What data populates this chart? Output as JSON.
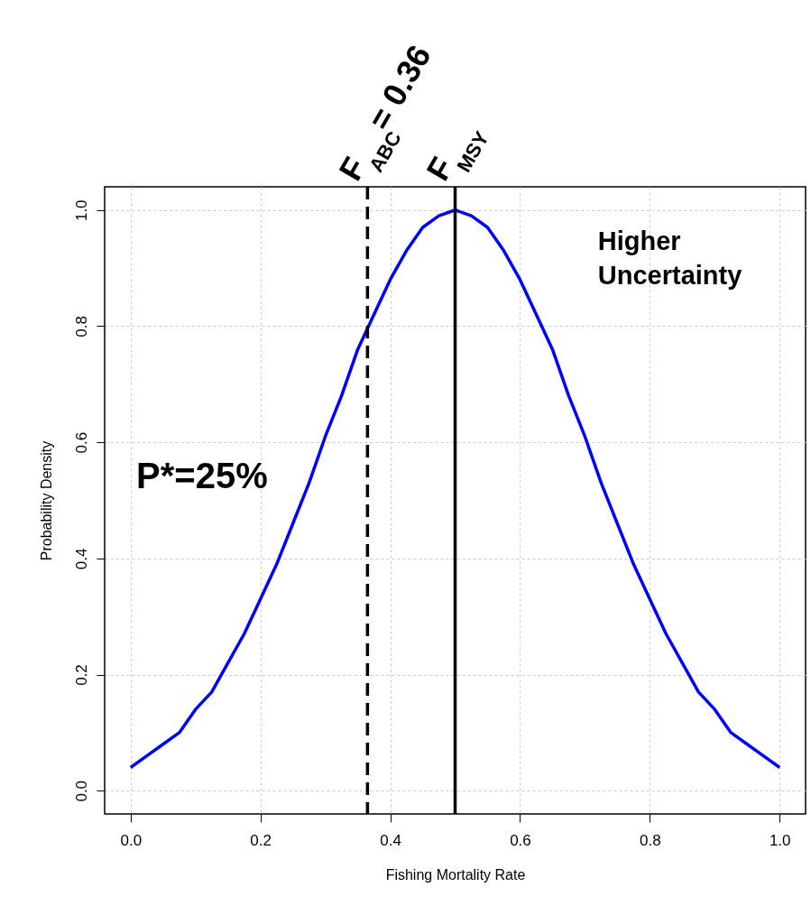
{
  "chart_data": {
    "type": "line",
    "xlabel": "Fishing Mortality Rate",
    "ylabel": "Probability Density",
    "x": [
      0,
      0.025,
      0.05,
      0.075,
      0.1,
      0.125,
      0.15,
      0.175,
      0.2,
      0.225,
      0.25,
      0.275,
      0.3,
      0.325,
      0.35,
      0.375,
      0.4,
      0.425,
      0.45,
      0.475,
      0.5,
      0.525,
      0.55,
      0.575,
      0.6,
      0.625,
      0.65,
      0.675,
      0.7,
      0.725,
      0.75,
      0.775,
      0.8,
      0.825,
      0.85,
      0.875,
      0.9,
      0.925,
      0.95,
      0.975,
      1.0
    ],
    "series": [
      {
        "color": "#0000ff",
        "values": [
          0.04,
          0.06,
          0.08,
          0.1,
          0.14,
          0.17,
          0.22,
          0.27,
          0.33,
          0.39,
          0.46,
          0.53,
          0.61,
          0.68,
          0.76,
          0.82,
          0.88,
          0.93,
          0.97,
          0.99,
          1.0,
          0.99,
          0.97,
          0.93,
          0.88,
          0.82,
          0.76,
          0.68,
          0.61,
          0.53,
          0.46,
          0.39,
          0.33,
          0.27,
          0.22,
          0.17,
          0.14,
          0.1,
          0.08,
          0.06,
          0.04
        ]
      }
    ],
    "xlim": [
      -0.04,
      1.04
    ],
    "ylim": [
      -0.04,
      1.04
    ],
    "xticks": [
      {
        "value": 0,
        "label": "0.0"
      },
      0.2,
      0.4,
      0.6,
      0.8,
      {
        "value": 1,
        "label": "1.0"
      }
    ],
    "yticks": [
      {
        "value": 0,
        "label": "0.0"
      },
      0.2,
      0.4,
      0.6,
      0.8,
      {
        "value": 1,
        "label": "1.0"
      }
    ],
    "grid": true,
    "line_style": "solid",
    "marker": "none",
    "ref_lines": [
      {
        "axis": "x",
        "value": 0.365,
        "label": "F$_{ABC}$ = 0.36",
        "line_style": "dashed",
        "color": "#000000"
      },
      {
        "axis": "x",
        "value": 0.5,
        "label": "F$_{MSY}$",
        "line_style": "solid",
        "color": "#000000"
      }
    ],
    "annotations": [
      "P*=25%",
      "Higher\nUncertainty"
    ]
  }
}
